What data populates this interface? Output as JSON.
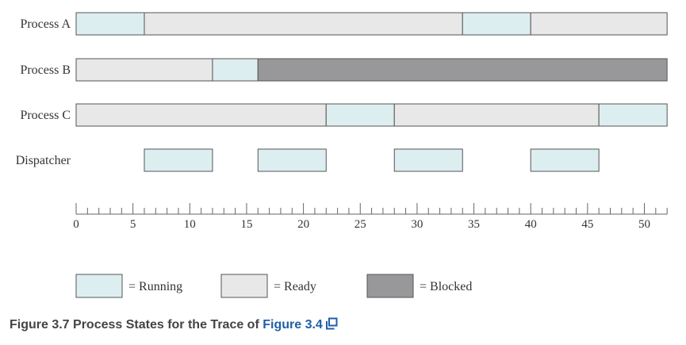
{
  "chart_data": {
    "type": "gantt",
    "x_range": [
      0,
      50
    ],
    "x_ticks": [
      "0",
      "5",
      "10",
      "15",
      "20",
      "25",
      "30",
      "35",
      "40",
      "45",
      "50"
    ],
    "minor_tick_step": 1,
    "rows": [
      {
        "label": "Process A",
        "segments": [
          {
            "start": 0,
            "end": 6,
            "state": "running"
          },
          {
            "start": 6,
            "end": 34,
            "state": "ready"
          },
          {
            "start": 34,
            "end": 40,
            "state": "running"
          },
          {
            "start": 40,
            "end": 52,
            "state": "ready"
          }
        ]
      },
      {
        "label": "Process B",
        "segments": [
          {
            "start": 0,
            "end": 12,
            "state": "ready"
          },
          {
            "start": 12,
            "end": 16,
            "state": "running"
          },
          {
            "start": 16,
            "end": 52,
            "state": "blocked"
          }
        ]
      },
      {
        "label": "Process C",
        "segments": [
          {
            "start": 0,
            "end": 22,
            "state": "ready"
          },
          {
            "start": 22,
            "end": 28,
            "state": "running"
          },
          {
            "start": 28,
            "end": 46,
            "state": "ready"
          },
          {
            "start": 46,
            "end": 52,
            "state": "running"
          }
        ]
      },
      {
        "label": "Dispatcher",
        "segments": [
          {
            "start": 6,
            "end": 12,
            "state": "running"
          },
          {
            "start": 16,
            "end": 22,
            "state": "running"
          },
          {
            "start": 28,
            "end": 34,
            "state": "running"
          },
          {
            "start": 40,
            "end": 46,
            "state": "running"
          }
        ]
      }
    ],
    "legend": [
      {
        "state": "running",
        "label": "= Running"
      },
      {
        "state": "ready",
        "label": "= Ready"
      },
      {
        "state": "blocked",
        "label": "= Blocked"
      }
    ],
    "colors": {
      "running": "#ddeef0",
      "ready": "#e8e8e8",
      "blocked": "#98989a"
    }
  },
  "caption": {
    "text": "Figure 3.7 Process States for the Trace of ",
    "link_text": "Figure 3.4"
  }
}
